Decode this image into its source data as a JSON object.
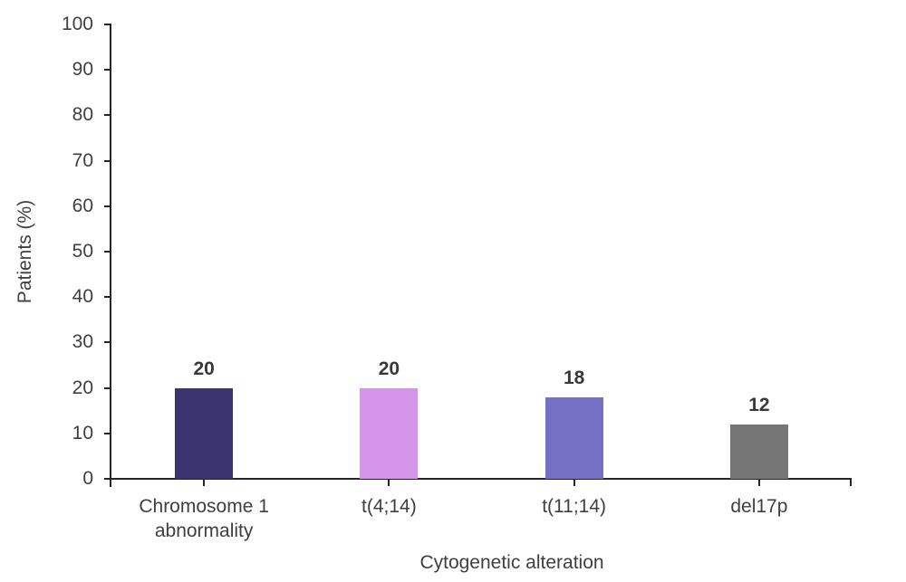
{
  "chart_data": {
    "type": "bar",
    "title": "",
    "xlabel": "Cytogenetic alteration",
    "ylabel": "Patients (%)",
    "categories": [
      "Chromosome 1\nabnormality",
      "t(4;14)",
      "t(11;14)",
      "del17p"
    ],
    "values": [
      20,
      20,
      18,
      12
    ],
    "value_labels": [
      "20",
      "20",
      "18",
      "12"
    ],
    "bar_colors": [
      "#3a3370",
      "#d494ea",
      "#7570c4",
      "#767676"
    ],
    "ylim": [
      0,
      100
    ],
    "ytick_step": 10,
    "ytick_labels": [
      "0",
      "10",
      "20",
      "30",
      "40",
      "50",
      "60",
      "70",
      "80",
      "90",
      "100"
    ],
    "grid": false,
    "legend": "none",
    "axis_color": "#262626",
    "text_color": "#3f3f3f"
  }
}
